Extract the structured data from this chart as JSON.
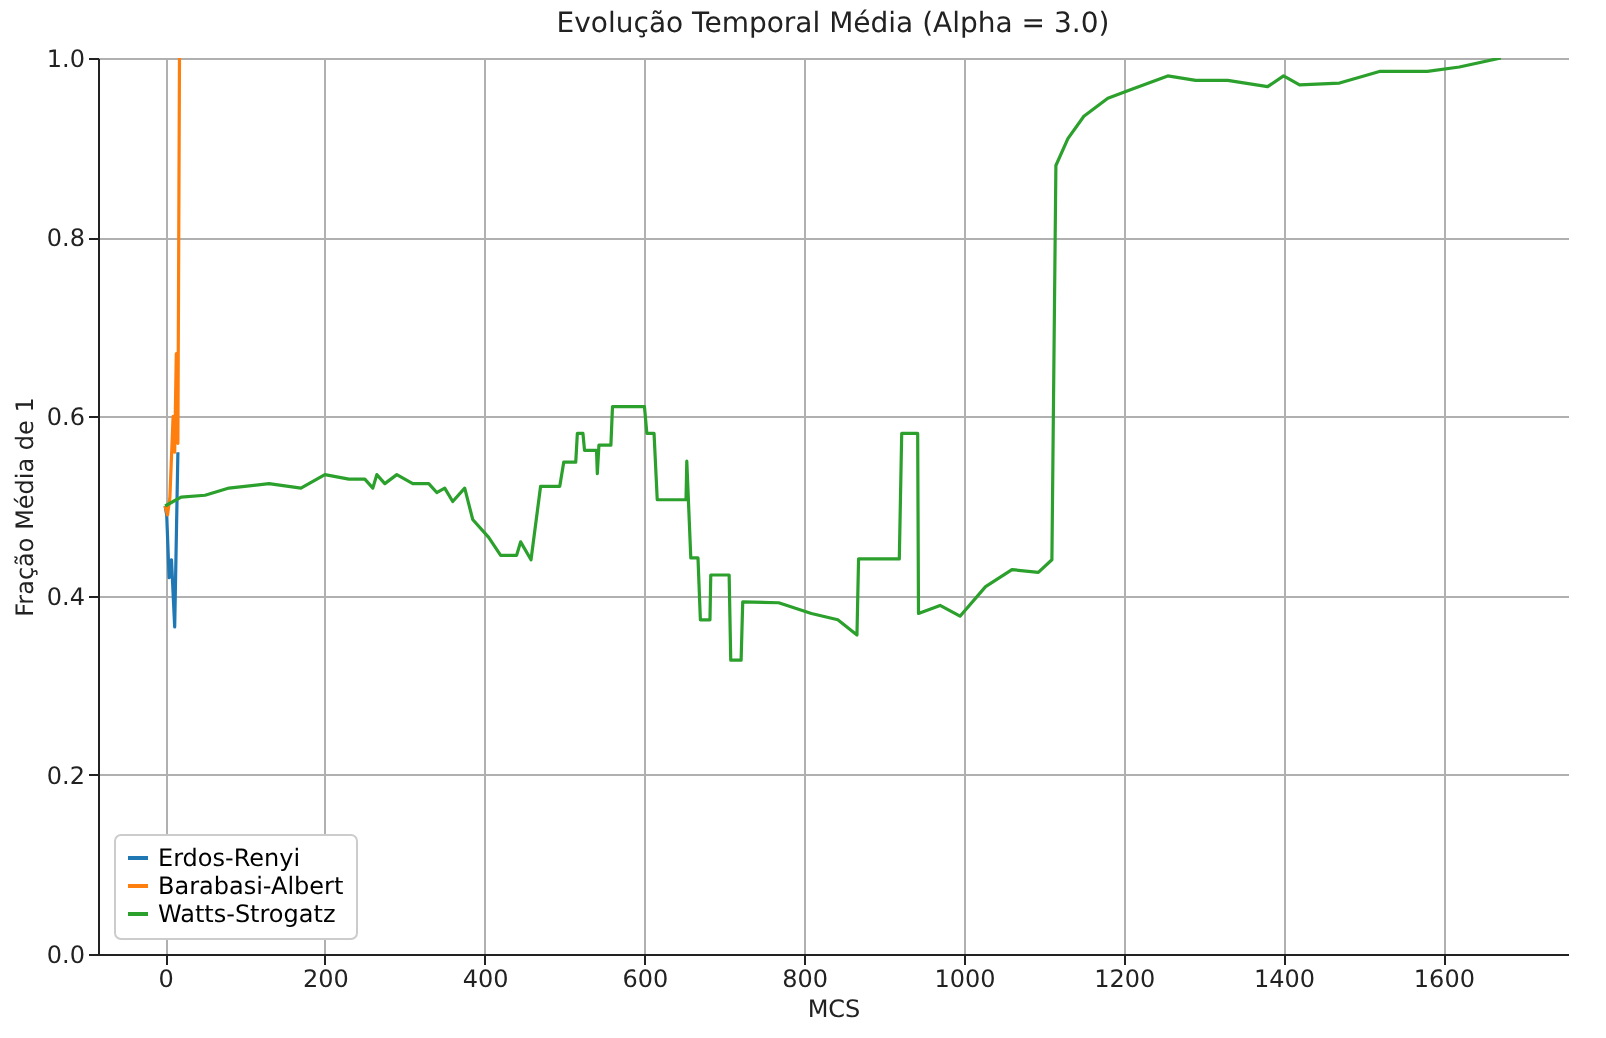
{
  "chart_data": {
    "type": "line",
    "title": "Evolução Temporal Média (Alpha = 3.0)",
    "xlabel": "MCS",
    "ylabel": "Fração Média de 1",
    "xlim": [
      -84,
      1756
    ],
    "xticks": [
      0,
      200,
      400,
      600,
      800,
      1000,
      1200,
      1400,
      1600
    ],
    "ylim": [
      0,
      1
    ],
    "yticks": [
      {
        "value": 0,
        "label": "0.0"
      },
      {
        "value": 0.2,
        "label": "0.2"
      },
      {
        "value": 0.4,
        "label": "0.4"
      },
      {
        "value": 0.6,
        "label": "0.6"
      },
      {
        "value": 0.8,
        "label": "0.8"
      },
      {
        "value": 1,
        "label": "1.0"
      }
    ],
    "grid": true,
    "legend": "bottom left",
    "line_style": "solid",
    "series": [
      {
        "name": "Erdos-Renyi",
        "color": "#1f77b4",
        "x": [
          0,
          2,
          5,
          8,
          12,
          16
        ],
        "values": [
          0.5,
          0.49,
          0.42,
          0.44,
          0.365,
          0.56
        ]
      },
      {
        "name": "Barabasi-Albert",
        "color": "#ff7f0e",
        "x": [
          0,
          3,
          6,
          10,
          12,
          14,
          16,
          18
        ],
        "values": [
          0.5,
          0.49,
          0.51,
          0.6,
          0.56,
          0.67,
          0.57,
          1.0
        ]
      },
      {
        "name": "Watts-Strogatz",
        "color": "#2ca02c",
        "x": [
          0,
          10,
          20,
          50,
          80,
          130,
          170,
          200,
          230,
          250,
          260,
          265,
          275,
          290,
          310,
          330,
          340,
          350,
          360,
          375,
          385,
          405,
          420,
          440,
          445,
          458,
          470,
          494,
          499,
          514,
          516,
          523,
          525,
          540,
          541,
          543,
          558,
          560,
          600,
          603,
          612,
          616,
          652,
          653,
          658,
          667,
          670,
          682,
          683,
          706,
          708,
          721,
          723,
          768,
          809,
          842,
          866,
          868,
          919,
          922,
          942,
          943,
          970,
          995,
          1027,
          1060,
          1093,
          1110,
          1115,
          1130,
          1150,
          1180,
          1210,
          1255,
          1290,
          1330,
          1380,
          1400,
          1420,
          1470,
          1520,
          1580,
          1620,
          1672
        ],
        "values": [
          0.5,
          0.505,
          0.51,
          0.512,
          0.52,
          0.525,
          0.52,
          0.535,
          0.53,
          0.53,
          0.52,
          0.535,
          0.525,
          0.535,
          0.525,
          0.525,
          0.515,
          0.52,
          0.505,
          0.52,
          0.485,
          0.465,
          0.445,
          0.445,
          0.46,
          0.44,
          0.522,
          0.522,
          0.549,
          0.549,
          0.581,
          0.581,
          0.562,
          0.562,
          0.536,
          0.568,
          0.568,
          0.611,
          0.611,
          0.581,
          0.581,
          0.507,
          0.507,
          0.55,
          0.442,
          0.442,
          0.373,
          0.373,
          0.423,
          0.423,
          0.328,
          0.328,
          0.393,
          0.392,
          0.38,
          0.373,
          0.356,
          0.441,
          0.441,
          0.581,
          0.581,
          0.38,
          0.389,
          0.377,
          0.41,
          0.429,
          0.426,
          0.44,
          0.88,
          0.91,
          0.935,
          0.955,
          0.965,
          0.98,
          0.975,
          0.975,
          0.968,
          0.98,
          0.97,
          0.972,
          0.985,
          0.985,
          0.99,
          1.0
        ]
      }
    ]
  }
}
